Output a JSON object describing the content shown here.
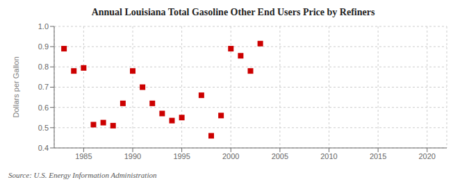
{
  "chart_data": {
    "type": "scatter",
    "title": "Annual Louisiana Total Gasoline Other End Users Price by Refiners",
    "y_label": "Dollars per Gallon",
    "annotations": [
      "Source: U.S. Energy Information Administration"
    ],
    "x": [
      1983,
      1984,
      1985,
      1986,
      1987,
      1988,
      1989,
      1990,
      1991,
      1992,
      1993,
      1994,
      1995,
      1997,
      1998,
      1999,
      2000,
      2001,
      2002,
      2003
    ],
    "values": [
      0.89,
      0.78,
      0.795,
      0.515,
      0.525,
      0.51,
      0.62,
      0.78,
      0.7,
      0.62,
      0.57,
      0.535,
      0.55,
      0.66,
      0.46,
      0.56,
      0.89,
      0.855,
      0.78,
      0.915
    ],
    "color": "#cc0000",
    "marker": "square",
    "xlim": [
      1982,
      2022
    ],
    "ylim": [
      0.4,
      1.0
    ],
    "xticks": [
      1985,
      1990,
      1995,
      2000,
      2005,
      2010,
      2015,
      2020
    ],
    "yticks": [
      {
        "value": 0.4,
        "label": "0.4"
      },
      {
        "value": 0.5,
        "label": "0.5"
      },
      {
        "value": 0.6,
        "label": "0.6"
      },
      {
        "value": 0.7,
        "label": "0.7"
      },
      {
        "value": 0.8,
        "label": "0.8"
      },
      {
        "value": 0.9,
        "label": "0.9"
      },
      {
        "value": 1.0,
        "label": "1.0"
      }
    ],
    "grid": true
  }
}
